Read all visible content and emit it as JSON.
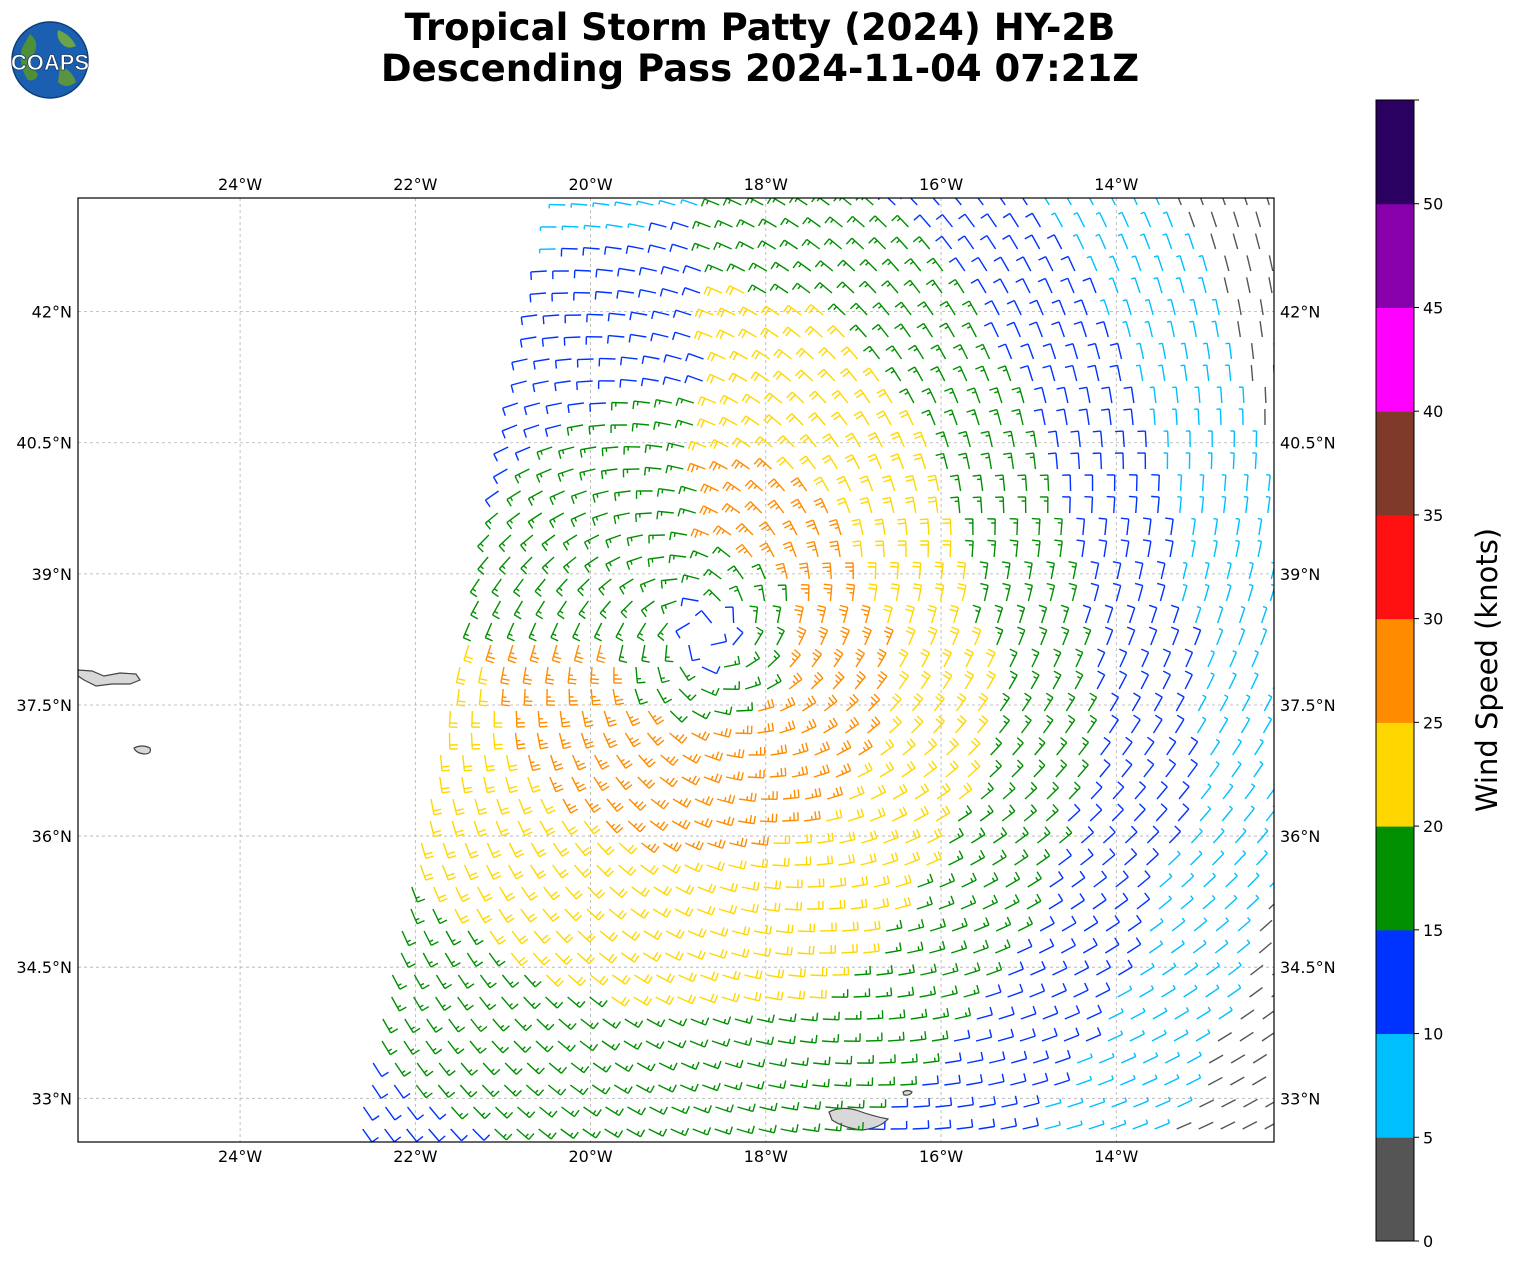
{
  "title": {
    "line1": "Tropical Storm Patty (2024) HY-2B",
    "line2": "Descending Pass 2024-11-04 07:21Z"
  },
  "logo": {
    "text": "COAPS"
  },
  "map": {
    "lon_range": [
      -25.85,
      -12.2
    ],
    "lat_range": [
      32.5,
      43.3
    ],
    "lon_ticks": [
      "24°W",
      "22°W",
      "20°W",
      "18°W",
      "16°W",
      "14°W"
    ],
    "lon_tick_values": [
      -24,
      -22,
      -20,
      -18,
      -16,
      -14
    ],
    "lat_ticks": [
      "42°N",
      "40.5°N",
      "39°N",
      "37.5°N",
      "36°N",
      "34.5°N",
      "33°N"
    ],
    "lat_tick_values": [
      42,
      40.5,
      39,
      37.5,
      36,
      34.5,
      33
    ],
    "grid": true,
    "storm_center": {
      "lon": -18.7,
      "lat": 38.3
    },
    "islands": [
      {
        "name": "Azores (São Miguel)",
        "shape": "elongated"
      },
      {
        "name": "Azores (Santa Maria)",
        "shape": "small"
      },
      {
        "name": "Madeira",
        "shape": "elongated"
      },
      {
        "name": "Porto Santo",
        "shape": "small"
      }
    ]
  },
  "colorbar": {
    "label": "Wind Speed (knots)",
    "tick_labels": [
      "0",
      "5",
      "10",
      "15",
      "20",
      "25",
      "30",
      "35",
      "40",
      "45",
      "50"
    ],
    "bins": [
      {
        "range": [
          0,
          5
        ],
        "color": "#555555"
      },
      {
        "range": [
          5,
          10
        ],
        "color": "#00bfff"
      },
      {
        "range": [
          10,
          15
        ],
        "color": "#0033ff"
      },
      {
        "range": [
          15,
          20
        ],
        "color": "#009000"
      },
      {
        "range": [
          20,
          25
        ],
        "color": "#ffd700"
      },
      {
        "range": [
          25,
          30
        ],
        "color": "#ff8c00"
      },
      {
        "range": [
          30,
          35
        ],
        "color": "#ff1010"
      },
      {
        "range": [
          35,
          40
        ],
        "color": "#7f3a2a"
      },
      {
        "range": [
          40,
          45
        ],
        "color": "#ff00ff"
      },
      {
        "range": [
          45,
          50
        ],
        "color": "#8800aa"
      },
      {
        "range": [
          50,
          55
        ],
        "color": "#2a0060"
      }
    ]
  }
}
